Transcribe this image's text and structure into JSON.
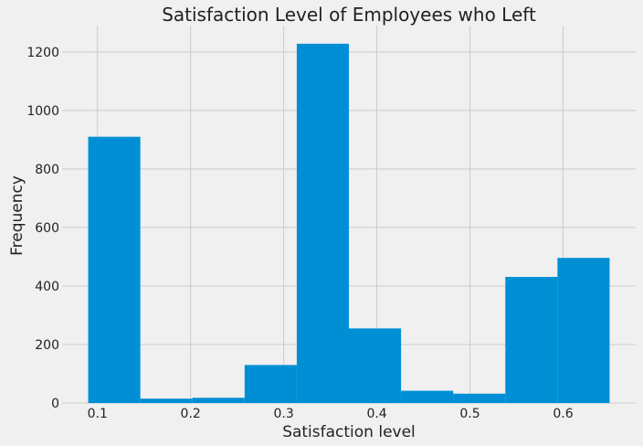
{
  "chart_data": {
    "type": "bar",
    "title": "Satisfaction Level of Employees who Left",
    "xlabel": "Satisfaction level",
    "ylabel": "Frequency",
    "bins": [
      {
        "start": 0.09,
        "end": 0.146,
        "count": 910
      },
      {
        "start": 0.146,
        "end": 0.202,
        "count": 15
      },
      {
        "start": 0.202,
        "end": 0.258,
        "count": 18
      },
      {
        "start": 0.258,
        "end": 0.314,
        "count": 130
      },
      {
        "start": 0.314,
        "end": 0.37,
        "count": 1228
      },
      {
        "start": 0.37,
        "end": 0.426,
        "count": 255
      },
      {
        "start": 0.426,
        "end": 0.482,
        "count": 42
      },
      {
        "start": 0.482,
        "end": 0.538,
        "count": 32
      },
      {
        "start": 0.538,
        "end": 0.594,
        "count": 431
      },
      {
        "start": 0.594,
        "end": 0.65,
        "count": 496
      }
    ],
    "xticks": [
      {
        "value": 0.1,
        "label": "0.1"
      },
      {
        "value": 0.2,
        "label": "0.2"
      },
      {
        "value": 0.3,
        "label": "0.3"
      },
      {
        "value": 0.4,
        "label": "0.4"
      },
      {
        "value": 0.5,
        "label": "0.5"
      },
      {
        "value": 0.6,
        "label": "0.6"
      }
    ],
    "yticks": [
      {
        "value": 0,
        "label": "0"
      },
      {
        "value": 200,
        "label": "200"
      },
      {
        "value": 400,
        "label": "400"
      },
      {
        "value": 600,
        "label": "600"
      },
      {
        "value": 800,
        "label": "800"
      },
      {
        "value": 1000,
        "label": "1000"
      },
      {
        "value": 1200,
        "label": "1200"
      }
    ],
    "xlim": [
      0.062,
      0.678
    ],
    "ylim": [
      0,
      1290
    ],
    "grid": true,
    "bar_color": "#008fd5",
    "background_color": "#f0f0f0",
    "grid_color": "#cbcbcb"
  }
}
